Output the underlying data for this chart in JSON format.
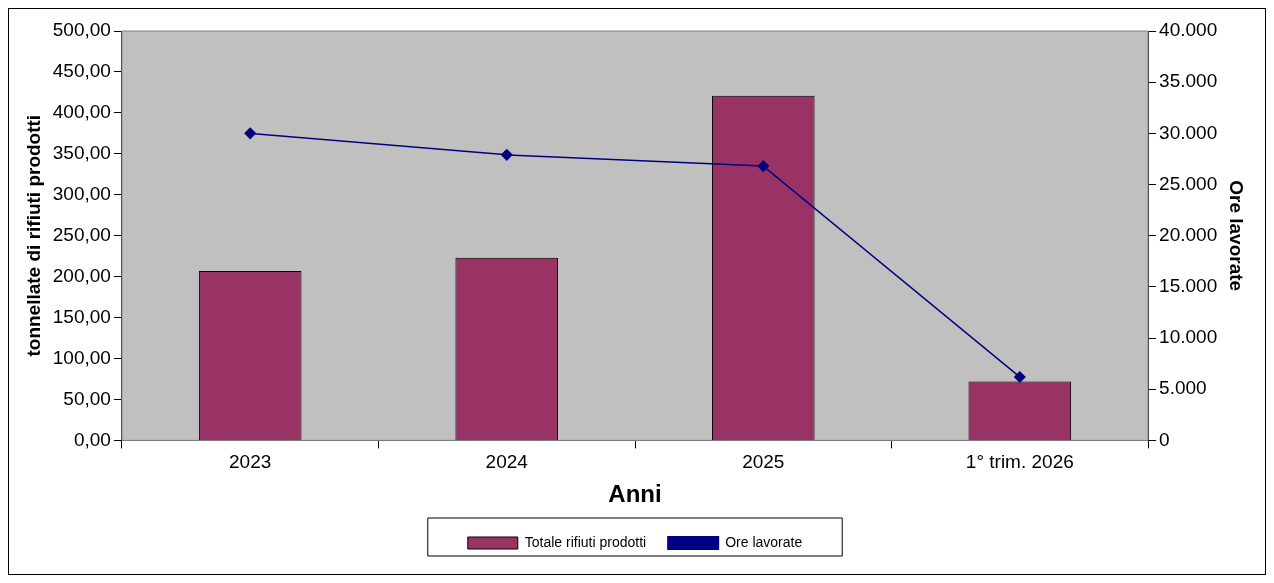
{
  "chart_data": {
    "type": "bar",
    "xlabel": "Anni",
    "ylabel": "tonnellate di rifiuti prodotti",
    "y2label": "Ore lavorate",
    "categories": [
      "2023",
      "2024",
      "2025",
      "1° trim. 2026"
    ],
    "series": [
      {
        "name": "Totale rifiuti prodotti",
        "color": "#993366",
        "values": [
          207,
          223,
          421,
          72
        ]
      },
      {
        "name": "Ore lavorate",
        "type": "line",
        "axis": "y2",
        "color": "#000080",
        "values": [
          30000,
          27900,
          26800,
          6200
        ]
      }
    ],
    "ylim": [
      0,
      500
    ],
    "yticks": [
      {
        "value": 0,
        "label": "0,00"
      },
      {
        "value": 50,
        "label": "50,00"
      },
      {
        "value": 100,
        "label": "100,00"
      },
      {
        "value": 150,
        "label": "150,00"
      },
      {
        "value": 200,
        "label": "200,00"
      },
      {
        "value": 250,
        "label": "250,00"
      },
      {
        "value": 300,
        "label": "300,00"
      },
      {
        "value": 350,
        "label": "350,00"
      },
      {
        "value": 400,
        "label": "400,00"
      },
      {
        "value": 450,
        "label": "450,00"
      },
      {
        "value": 500,
        "label": "500,00"
      }
    ],
    "y2lim": [
      0,
      40000
    ],
    "y2ticks": [
      0,
      {
        "value": 5000,
        "label": "5.000"
      },
      {
        "value": 10000,
        "label": "10.000"
      },
      {
        "value": 15000,
        "label": "15.000"
      },
      {
        "value": 20000,
        "label": "20.000"
      },
      {
        "value": 25000,
        "label": "25.000"
      },
      {
        "value": 30000,
        "label": "30.000"
      },
      {
        "value": 35000,
        "label": "35.000"
      },
      {
        "value": 40000,
        "label": "40.000"
      }
    ],
    "marker": "diamond",
    "legend": "bottom"
  }
}
